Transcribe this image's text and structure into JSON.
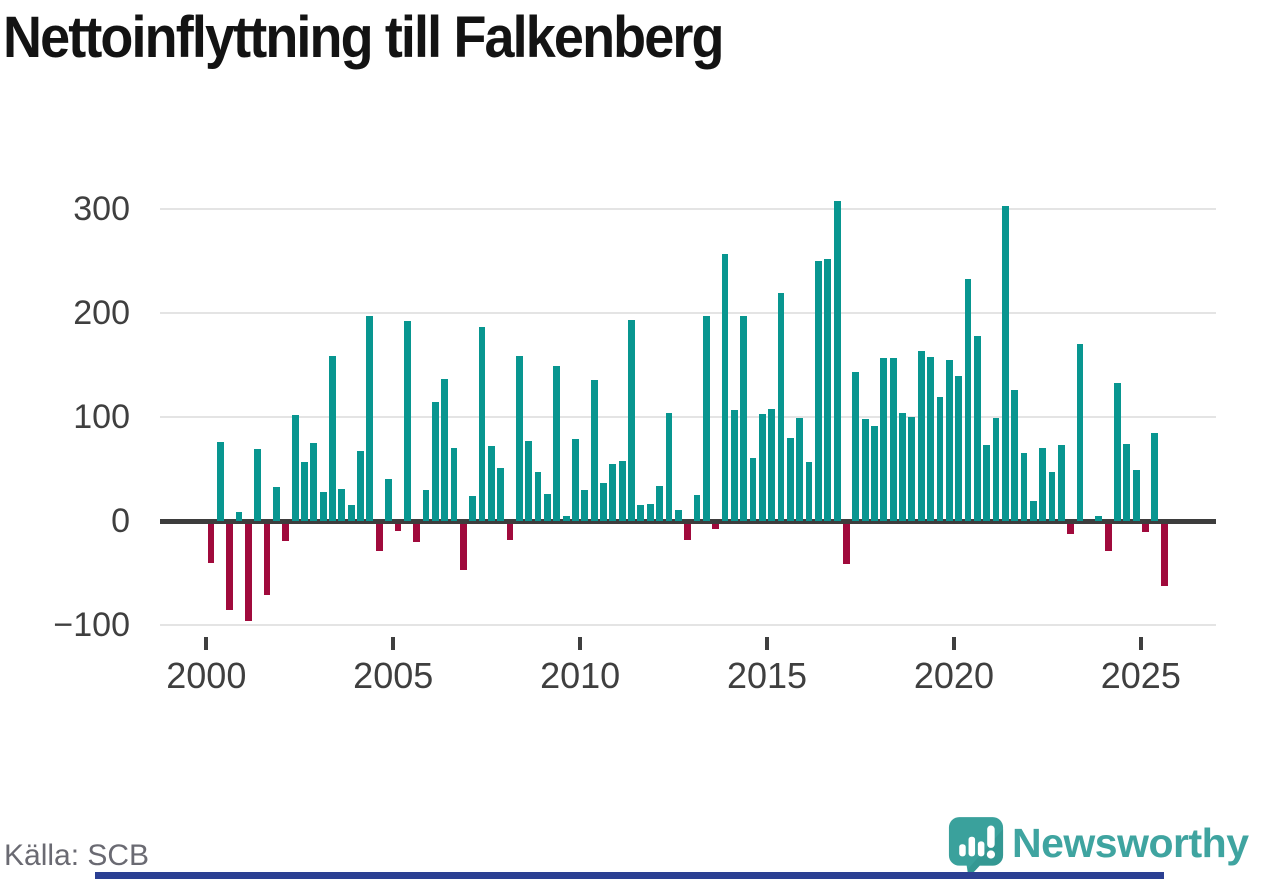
{
  "title": "Nettoinflyttning till Falkenberg",
  "source": "Källa: SCB",
  "brand": {
    "name": "Newsworthy"
  },
  "colors": {
    "positive_bar": "#089690",
    "negative_bar": "#a00a3c",
    "grid": "#e4e4e4",
    "zero_line": "#3d3d3d",
    "axis_text": "#3f3f3f",
    "title_text": "#131313",
    "source_text": "#6a6a72",
    "brand_teal": "#3fa4a0",
    "footer_rule": "#2b3f92"
  },
  "chart_data": {
    "type": "bar",
    "title": "Nettoinflyttning till Falkenberg",
    "frequency": "quarterly",
    "x_start": {
      "year": 2000,
      "quarter": 1
    },
    "x_end": {
      "year": 2025,
      "quarter": 3
    },
    "xlabel": "",
    "ylabel": "",
    "ylim": [
      -100,
      320
    ],
    "y_ticks": [
      300,
      200,
      100,
      0,
      -100
    ],
    "x_ticks": [
      2000,
      2005,
      2010,
      2015,
      2020,
      2025
    ],
    "grid": true,
    "legend": "none",
    "values": [
      -38,
      76,
      -83,
      9,
      -94,
      69,
      -69,
      33,
      -17,
      102,
      57,
      75,
      28,
      159,
      31,
      15,
      67,
      197,
      -26,
      40,
      -7,
      192,
      -18,
      30,
      114,
      137,
      70,
      -45,
      24,
      187,
      72,
      51,
      -16,
      159,
      77,
      47,
      26,
      149,
      5,
      79,
      30,
      136,
      37,
      55,
      58,
      193,
      15,
      16,
      34,
      104,
      11,
      -16,
      25,
      197,
      -5,
      257,
      107,
      197,
      61,
      103,
      108,
      219,
      80,
      99,
      57,
      250,
      252,
      308,
      -39,
      143,
      98,
      91,
      157,
      157,
      104,
      100,
      163,
      158,
      119,
      155,
      139,
      233,
      178,
      73,
      99,
      303,
      126,
      65,
      19,
      70,
      47,
      73,
      -10,
      170,
      0,
      5,
      -26,
      133,
      74,
      49,
      -8,
      85,
      -60
    ]
  }
}
